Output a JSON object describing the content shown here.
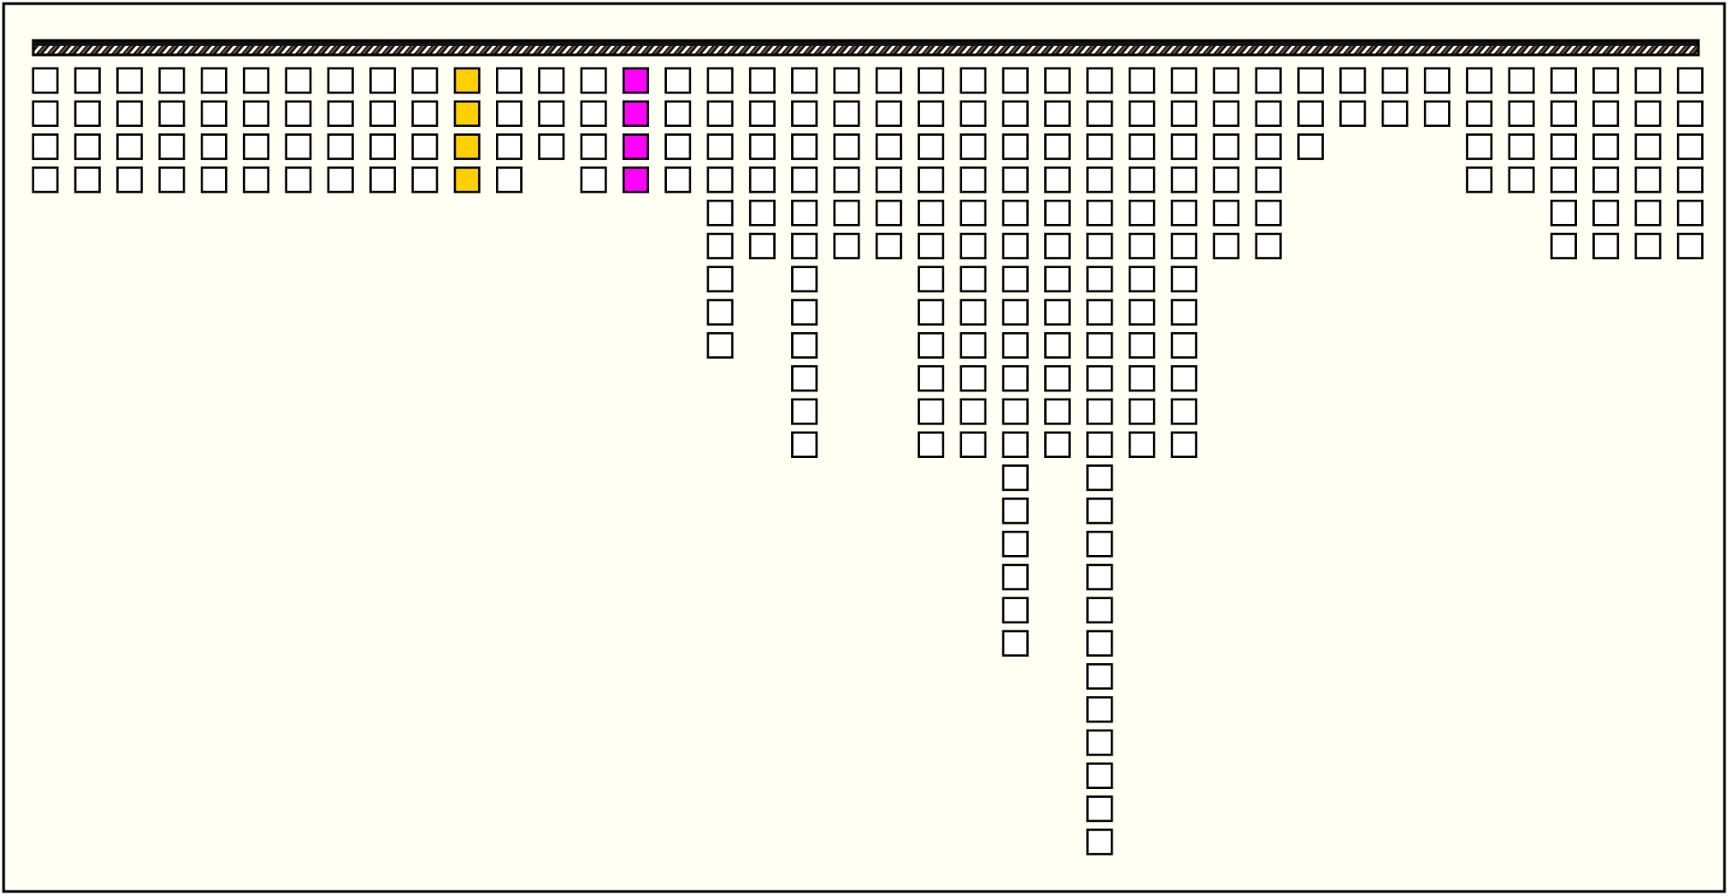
{
  "board": {
    "columns": [
      4,
      4,
      4,
      4,
      4,
      4,
      4,
      4,
      4,
      4,
      4,
      4,
      3,
      4,
      4,
      4,
      9,
      6,
      12,
      6,
      6,
      12,
      12,
      18,
      12,
      24,
      12,
      12,
      6,
      6,
      3,
      2,
      2,
      2,
      4,
      4,
      6,
      6,
      6,
      6
    ],
    "column_colors": [
      "#ffffff",
      "#ffffff",
      "#ffffff",
      "#ffffff",
      "#ffffff",
      "#ffffff",
      "#ffffff",
      "#ffffff",
      "#ffffff",
      "#ffffff",
      "#ffd000",
      "#ffffff",
      "#ffffff",
      "#ffffff",
      "#ff00ff",
      "#ffffff",
      "#ffffff",
      "#ffffff",
      "#ffffff",
      "#ffffff",
      "#ffffff",
      "#ffffff",
      "#ffffff",
      "#ffffff",
      "#ffffff",
      "#ffffff",
      "#ffffff",
      "#ffffff",
      "#ffffff",
      "#ffffff",
      "#ffffff",
      "#ffffff",
      "#ffffff",
      "#ffffff",
      "#ffffff",
      "#ffffff",
      "#ffffff",
      "#ffffff",
      "#ffffff",
      "#ffffff"
    ]
  }
}
